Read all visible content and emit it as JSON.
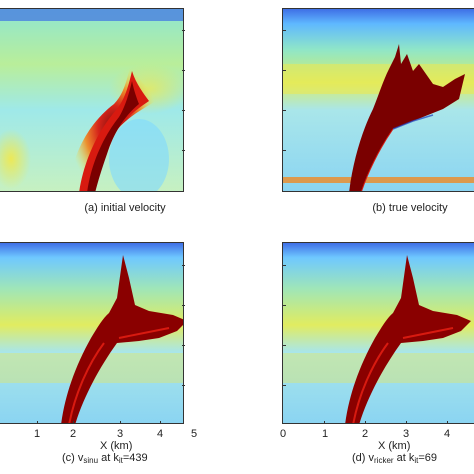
{
  "panels": [
    {
      "id": "a",
      "caption": "(a) initial velocity",
      "bodyShape": "smooth"
    },
    {
      "id": "b",
      "caption": "(b) true velocity",
      "bodyShape": "sharp"
    },
    {
      "id": "c",
      "caption_prefix": "(c) v",
      "caption_sub1": "sinu",
      "caption_mid": " at k",
      "caption_sub2": "it",
      "caption_suffix": "=439",
      "bodyShape": "sharp"
    },
    {
      "id": "d",
      "caption_prefix": "(d) v",
      "caption_sub1": "ricker",
      "caption_mid": " at k",
      "caption_sub2": "it",
      "caption_suffix": "=69",
      "bodyShape": "sharp"
    }
  ],
  "x_axis": {
    "title": "X (km)",
    "left_ticks": [
      "1",
      "2",
      "3",
      "4",
      "5"
    ],
    "right_ticks": [
      "0",
      "1",
      "2",
      "3",
      "4"
    ]
  },
  "colors": {
    "deep_blue": "#1f3fbf",
    "cyan": "#7fd8ff",
    "light_cyan": "#a8e6f5",
    "green_cyan": "#7ee0c8",
    "yellow": "#f2e84a",
    "orange": "#f08a25",
    "red": "#d81a10",
    "dark_red": "#7a0000"
  }
}
